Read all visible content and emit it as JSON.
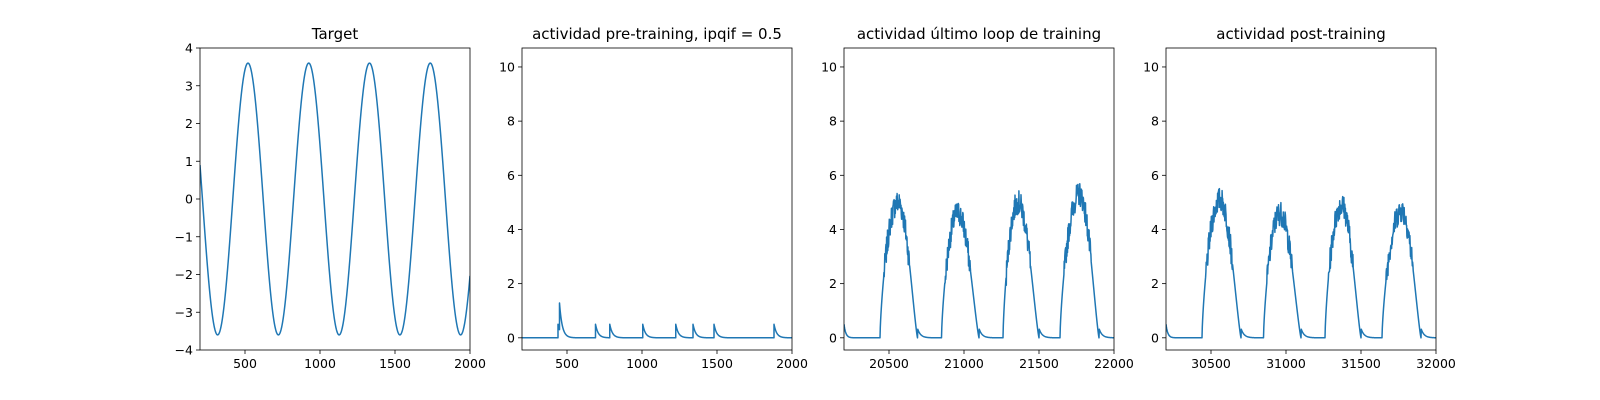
{
  "colors": {
    "line": "#1f77b4",
    "background": "#ffffff",
    "axes": "#000000"
  },
  "chart_data": [
    {
      "type": "line",
      "title": "Target",
      "xlim": [
        200,
        2000
      ],
      "ylim": [
        -4,
        4
      ],
      "xticks": [
        500,
        1000,
        1500,
        2000
      ],
      "yticks": [
        -4,
        -3,
        -2,
        -1,
        0,
        1,
        2,
        3,
        4
      ],
      "series": [
        {
          "kind": "sine",
          "amplitude": 3.6,
          "period": 405,
          "peak_x": [
            520,
            925,
            1330,
            1730
          ],
          "x_range": [
            200,
            2000
          ]
        }
      ]
    },
    {
      "type": "line",
      "title": "actividad pre-training, ipqif = 0.5",
      "xlim": [
        200,
        2000
      ],
      "ylim": [
        -0.45,
        10.7
      ],
      "xticks": [
        500,
        1000,
        1500,
        2000
      ],
      "yticks": [
        0,
        2,
        4,
        6,
        8,
        10
      ],
      "series": [
        {
          "kind": "spikes",
          "baseline": 0.0,
          "decay": 18,
          "spikes": [
            {
              "x": 440,
              "height": 0.5
            },
            {
              "x": 450,
              "height": 1.0
            },
            {
              "x": 690,
              "height": 0.5
            },
            {
              "x": 785,
              "height": 0.5
            },
            {
              "x": 1005,
              "height": 0.5
            },
            {
              "x": 1225,
              "height": 0.5
            },
            {
              "x": 1340,
              "height": 0.5
            },
            {
              "x": 1480,
              "height": 0.5
            },
            {
              "x": 1880,
              "height": 0.5
            }
          ],
          "x_range": [
            200,
            2000
          ]
        }
      ]
    },
    {
      "type": "line",
      "title": "actividad último loop de training",
      "xlim": [
        20200,
        22000
      ],
      "ylim": [
        -0.45,
        10.7
      ],
      "xticks": [
        20500,
        21000,
        21500,
        22000
      ],
      "yticks": [
        0,
        2,
        4,
        6,
        8,
        10
      ],
      "series": [
        {
          "kind": "bumps",
          "baseline": 0.0,
          "initial_spike": {
            "x": 20200,
            "height": 0.5
          },
          "bumps": [
            {
              "start": 20440,
              "peak_x": 20560,
              "peak": 5.0,
              "end": 20690
            },
            {
              "start": 20850,
              "peak_x": 20960,
              "peak": 4.6,
              "end": 21100
            },
            {
              "start": 21260,
              "peak_x": 21360,
              "peak": 5.0,
              "end": 21500
            },
            {
              "start": 21640,
              "peak_x": 21770,
              "peak": 5.3,
              "end": 21900
            }
          ],
          "x_range": [
            20200,
            22000
          ]
        }
      ]
    },
    {
      "type": "line",
      "title": "actividad post-training",
      "xlim": [
        30200,
        32000
      ],
      "ylim": [
        -0.45,
        10.7
      ],
      "xticks": [
        30500,
        31000,
        31500,
        32000
      ],
      "yticks": [
        0,
        2,
        4,
        6,
        8,
        10
      ],
      "series": [
        {
          "kind": "bumps",
          "baseline": 0.0,
          "initial_spike": {
            "x": 30200,
            "height": 0.5
          },
          "bumps": [
            {
              "start": 30440,
              "peak_x": 30560,
              "peak": 5.1,
              "end": 30700
            },
            {
              "start": 30850,
              "peak_x": 30960,
              "peak": 4.6,
              "end": 31100
            },
            {
              "start": 31260,
              "peak_x": 31370,
              "peak": 4.9,
              "end": 31500
            },
            {
              "start": 31640,
              "peak_x": 31770,
              "peak": 4.7,
              "end": 31900
            }
          ],
          "x_range": [
            30200,
            32000
          ]
        }
      ]
    }
  ]
}
